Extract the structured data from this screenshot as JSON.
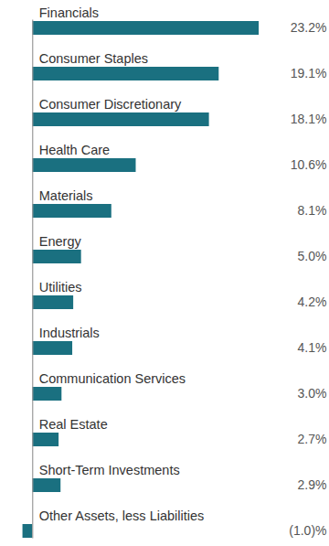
{
  "chart_data": {
    "type": "bar",
    "orientation": "horizontal",
    "categories": [
      "Financials",
      "Consumer Staples",
      "Consumer Discretionary",
      "Health Care",
      "Materials",
      "Energy",
      "Utilities",
      "Industrials",
      "Communication Services",
      "Real Estate",
      "Short-Term Investments",
      "Other Assets, less Liabilities"
    ],
    "values": [
      23.2,
      19.1,
      18.1,
      10.6,
      8.1,
      5.0,
      4.2,
      4.1,
      3.0,
      2.7,
      2.9,
      -1.0
    ],
    "value_labels": [
      "23.2%",
      "19.1%",
      "18.1%",
      "10.6%",
      "8.1%",
      "5.0%",
      "4.2%",
      "4.1%",
      "3.0%",
      "2.7%",
      "2.9%",
      "(1.0)%"
    ],
    "color": "#1a7080",
    "xlim": [
      -3.3,
      30.4
    ],
    "data_labels": true,
    "tick_labels": "y"
  }
}
